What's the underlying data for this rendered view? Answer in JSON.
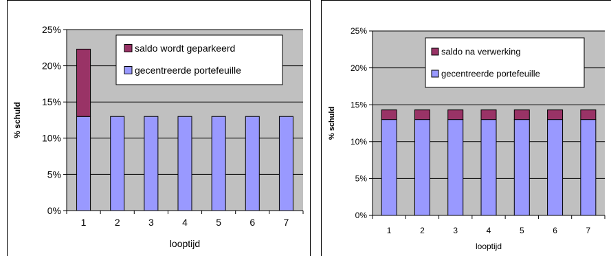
{
  "chart_data": [
    {
      "type": "bar",
      "stacked": true,
      "categories": [
        "1",
        "2",
        "3",
        "4",
        "5",
        "6",
        "7"
      ],
      "series": [
        {
          "name": "gecentreerde portefeuille",
          "values": [
            13,
            13,
            13,
            13,
            13,
            13,
            13
          ],
          "color": "#9999ff"
        },
        {
          "name": "saldo wordt geparkeerd",
          "values": [
            9.3,
            0,
            0,
            0,
            0,
            0,
            0
          ],
          "color": "#993366"
        }
      ],
      "legend_order": [
        "saldo wordt geparkeerd",
        "gecentreerde portefeuille"
      ],
      "legend_position": "top-right",
      "ylim": [
        0,
        25
      ],
      "yticks": [
        "0%",
        "5%",
        "10%",
        "15%",
        "20%",
        "25%"
      ],
      "ytick_values": [
        0,
        5,
        10,
        15,
        20,
        25
      ],
      "xlabel": "looptijd",
      "ylabel": "% schuld",
      "plot_background": "#c0c0c0",
      "grid": true
    },
    {
      "type": "bar",
      "stacked": true,
      "categories": [
        "1",
        "2",
        "3",
        "4",
        "5",
        "6",
        "7"
      ],
      "series": [
        {
          "name": "gecentreerde portefeuille",
          "values": [
            13,
            13,
            13,
            13,
            13,
            13,
            13
          ],
          "color": "#9999ff"
        },
        {
          "name": "saldo na verwerking",
          "values": [
            1.3,
            1.3,
            1.3,
            1.3,
            1.3,
            1.3,
            1.3
          ],
          "color": "#993366"
        }
      ],
      "legend_order": [
        "saldo na verwerking",
        "gecentreerde portefeuille"
      ],
      "legend_position": "top-right",
      "ylim": [
        0,
        25
      ],
      "yticks": [
        "0%",
        "5%",
        "10%",
        "15%",
        "20%",
        "25%"
      ],
      "ytick_values": [
        0,
        5,
        10,
        15,
        20,
        25
      ],
      "xlabel": "looptijd",
      "ylabel": "% schuld",
      "plot_background": "#c0c0c0",
      "grid": true
    }
  ]
}
